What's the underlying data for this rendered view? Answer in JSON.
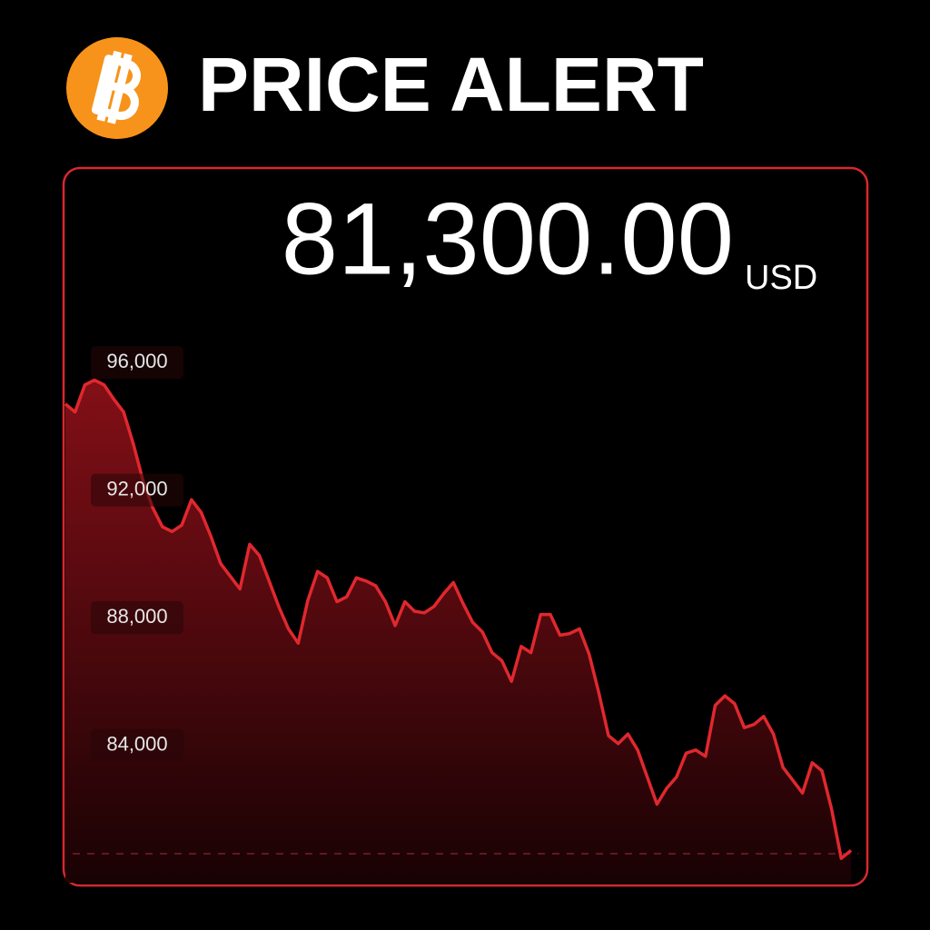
{
  "chart_data": {
    "type": "area",
    "title": "PRICE ALERT",
    "price_label": "81,300.00",
    "currency": "USD",
    "color": "#e0282e",
    "values": [
      94700,
      94450,
      95300,
      95450,
      95300,
      94850,
      94450,
      93450,
      92300,
      91450,
      90850,
      90700,
      90900,
      91700,
      91300,
      90550,
      89700,
      89300,
      88900,
      90300,
      89950,
      89150,
      88350,
      87650,
      87200,
      88550,
      89450,
      89250,
      88500,
      88650,
      89250,
      89150,
      89000,
      88500,
      87750,
      88500,
      88200,
      88150,
      88350,
      88750,
      89100,
      88450,
      87850,
      87550,
      86900,
      86650,
      86000,
      87100,
      86900,
      88100,
      88100,
      87450,
      87500,
      87650,
      86850,
      85650,
      84300,
      84050,
      84350,
      83850,
      83000,
      82150,
      82650,
      83000,
      83750,
      83850,
      83650,
      85250,
      85550,
      85300,
      84550,
      84650,
      84900,
      84350,
      83300,
      82900,
      82500,
      83450,
      83200,
      82000,
      80450,
      80700
    ],
    "ylim": [
      79600,
      102100
    ],
    "yticks": [
      {
        "value": 84000,
        "label": "84,000"
      },
      {
        "value": 88000,
        "label": "88,000"
      },
      {
        "value": 92000,
        "label": "92,000"
      },
      {
        "value": 96000,
        "label": "96,000"
      }
    ]
  }
}
